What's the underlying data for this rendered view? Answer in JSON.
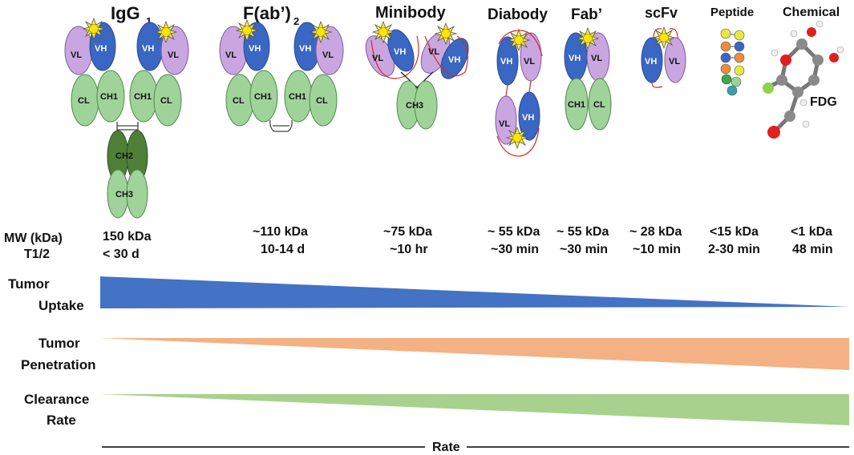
{
  "formats": [
    {
      "key": "igg1",
      "name": "IgG",
      "sub": "1",
      "mw": "150 kDa",
      "t12": "< 30 d"
    },
    {
      "key": "fab2",
      "name": "F(ab’)",
      "sub": "2",
      "mw": "~110 kDa",
      "t12": "10-14 d"
    },
    {
      "key": "minibody",
      "name": "Minibody",
      "sub": "",
      "mw": "~75 kDa",
      "t12": "~10 hr"
    },
    {
      "key": "diabody",
      "name": "Diabody",
      "sub": "",
      "mw": "~ 55 kDa",
      "t12": "~30 min"
    },
    {
      "key": "fabp",
      "name": "Fab’",
      "sub": "",
      "mw": "~ 55 kDa",
      "t12": "~30 min"
    },
    {
      "key": "scfv",
      "name": "scFv",
      "sub": "",
      "mw": "~ 28 kDa",
      "t12": "~10 min"
    },
    {
      "key": "peptide",
      "name": "Peptide",
      "sub": "",
      "mw": "<15 kDa",
      "t12": "2-30 min"
    },
    {
      "key": "chemical",
      "name": "Chemical",
      "sub": "",
      "mw": "<1 kDa",
      "t12": "48 min"
    }
  ],
  "domains": {
    "vl": "VL",
    "vh": "VH",
    "cl": "CL",
    "ch1": "CH1",
    "ch2": "CH2",
    "ch3": "CH3"
  },
  "fdg_label": "FDG",
  "rows": {
    "mw_label": "MW (kDa)",
    "t12_label": "T1/2",
    "tumor_uptake": [
      "Tumor",
      "Uptake"
    ],
    "tumor_penetration": [
      "Tumor",
      "Penetration"
    ],
    "clearance_rate": [
      "Clearance",
      "Rate"
    ]
  },
  "axis_label": "Rate",
  "colors": {
    "uptake": "#4472c4",
    "penetration": "#f4b183",
    "clearance": "#a9d18e"
  }
}
